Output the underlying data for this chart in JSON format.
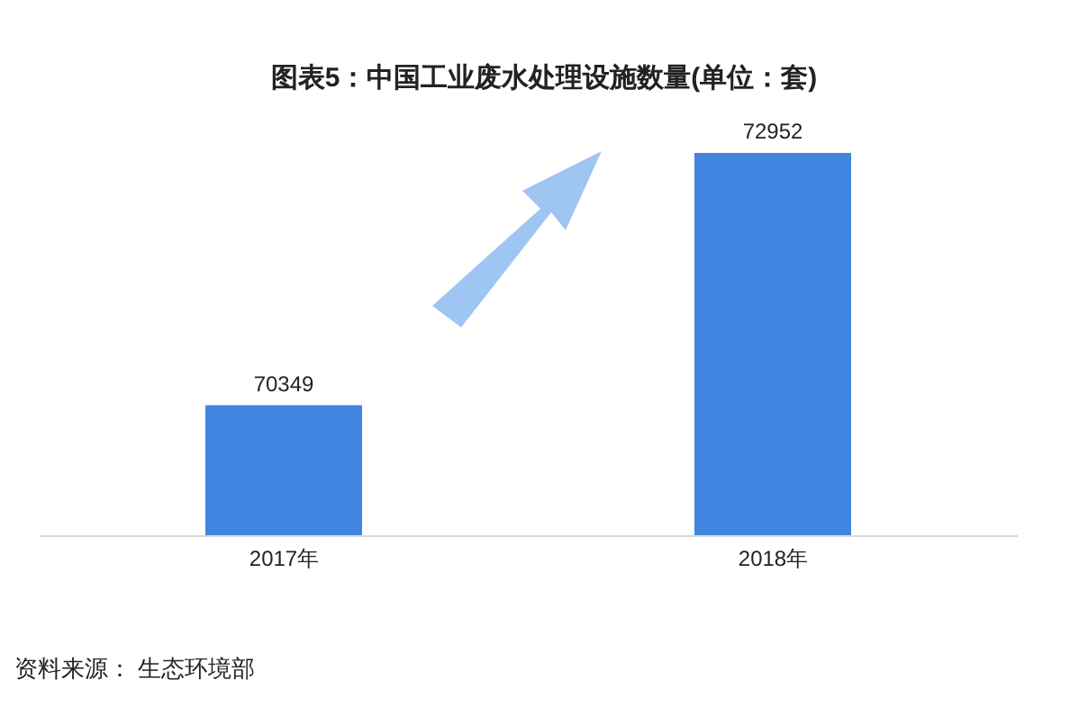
{
  "chart_data": {
    "type": "bar",
    "title": "图表5：中国工业废水处理设施数量(单位：套)",
    "categories": [
      "2017年",
      "2018年"
    ],
    "values": [
      70349,
      72952
    ],
    "color": "#4285e0",
    "ylim": [
      69000,
      72952
    ],
    "tick_labels": "x",
    "data_labels": true,
    "annotations": [
      "资料来源： 生态环境部"
    ]
  }
}
